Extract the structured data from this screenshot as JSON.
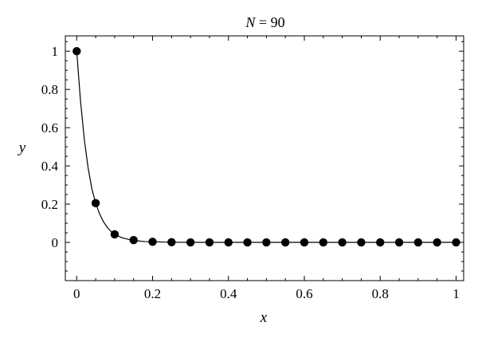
{
  "chart_data": {
    "type": "scatter",
    "title_var": "N",
    "title_rest": " = 90",
    "xlabel": "x",
    "ylabel": "y",
    "xlim": [
      -0.03,
      1.02
    ],
    "ylim": [
      -0.2,
      1.08
    ],
    "grid": false,
    "legend": "none",
    "x_ticks": [
      0,
      0.2,
      0.4,
      0.6,
      0.8,
      1
    ],
    "x_tick_labels": [
      "0",
      "0.2",
      "0.4",
      "0.6",
      "0.8",
      "1"
    ],
    "y_ticks": [
      0,
      0.2,
      0.4,
      0.6,
      0.8,
      1
    ],
    "y_tick_labels": [
      "0",
      "0.2",
      "0.4",
      "0.6",
      "0.8",
      "1"
    ],
    "series": [
      {
        "kind": "points",
        "x": [
          0,
          0.05,
          0.1,
          0.15,
          0.2,
          0.25,
          0.3,
          0.35,
          0.4,
          0.45,
          0.5,
          0.55,
          0.6,
          0.65,
          0.7,
          0.75,
          0.8,
          0.85,
          0.9,
          0.95,
          1
        ],
        "y": [
          1,
          0.205,
          0.042,
          0.012,
          0.003,
          0.001,
          0,
          0,
          0,
          0,
          0,
          0,
          0,
          0,
          0,
          0,
          0,
          0,
          0,
          0,
          0
        ]
      },
      {
        "kind": "line",
        "x": [
          0,
          0.01,
          0.02,
          0.03,
          0.04,
          0.05,
          0.06,
          0.07,
          0.08,
          0.09,
          0.1,
          0.12,
          0.14,
          0.16,
          0.18,
          0.2,
          0.25,
          0.3,
          0.4,
          0.5,
          0.6,
          0.7,
          0.8,
          0.9,
          1
        ],
        "y": [
          1,
          0.74,
          0.54,
          0.39,
          0.28,
          0.205,
          0.15,
          0.11,
          0.08,
          0.058,
          0.042,
          0.024,
          0.014,
          0.008,
          0.004,
          0.003,
          0.001,
          0,
          0,
          0,
          0,
          0,
          0,
          0,
          0
        ]
      }
    ],
    "colors": {
      "marker": "#000000",
      "line": "#000000",
      "frame": "#000000"
    }
  }
}
